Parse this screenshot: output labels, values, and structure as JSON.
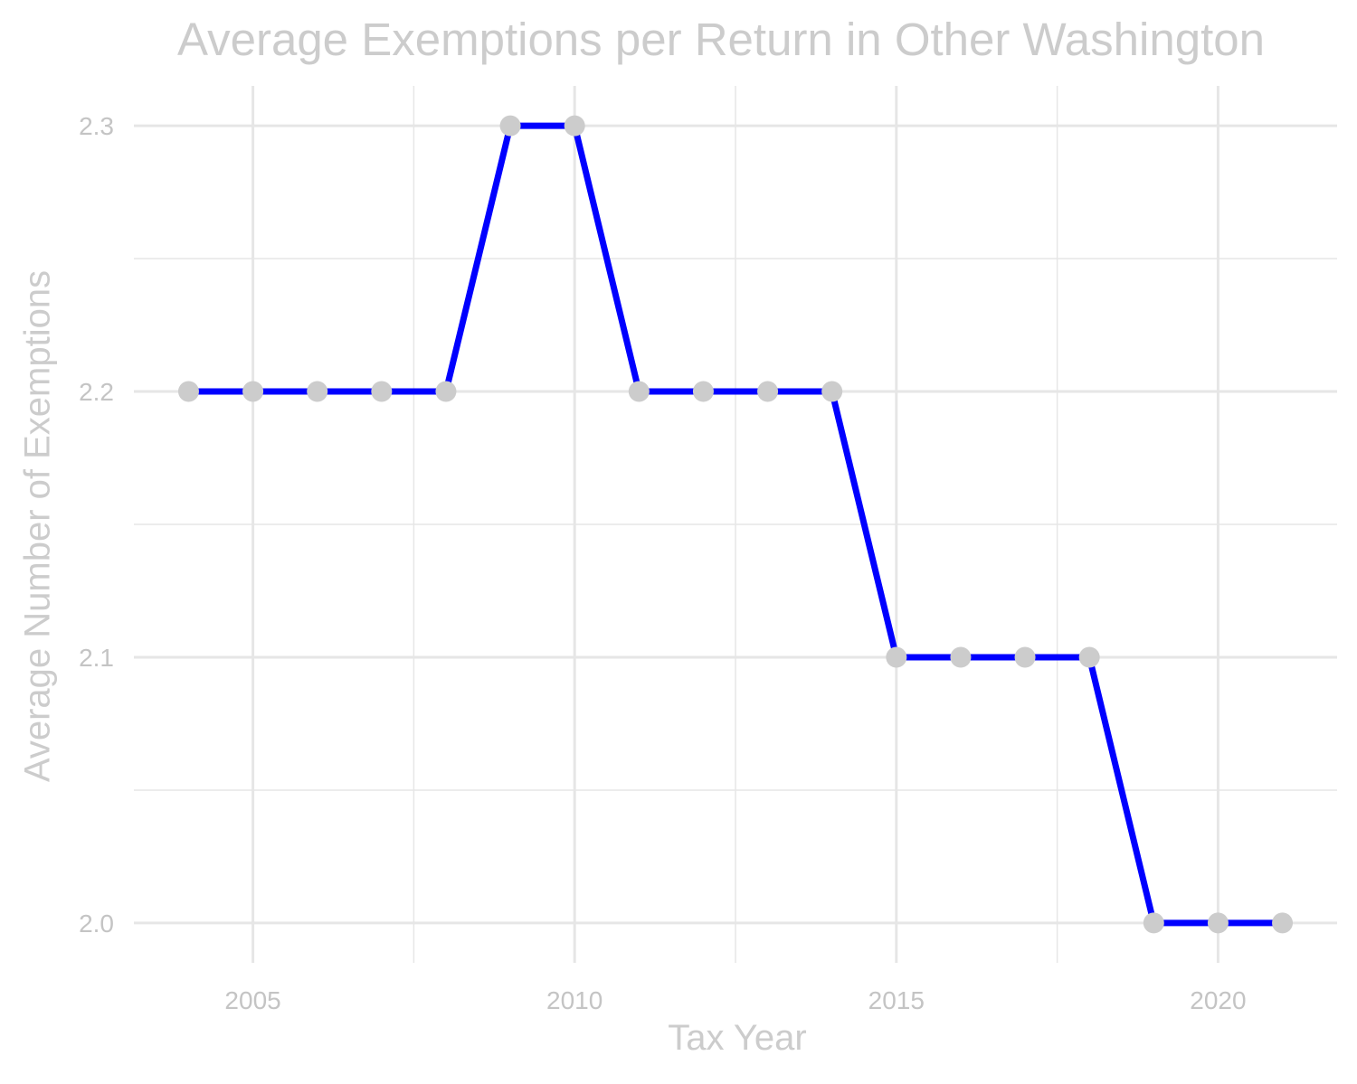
{
  "chart_data": {
    "type": "line",
    "title": "Average Exemptions per Return in Other Washington",
    "xlabel": "Tax Year",
    "ylabel": "Average Number of Exemptions",
    "x": [
      2004,
      2005,
      2006,
      2007,
      2008,
      2009,
      2010,
      2011,
      2012,
      2013,
      2014,
      2015,
      2016,
      2017,
      2018,
      2019,
      2020,
      2021
    ],
    "series": [
      {
        "values": [
          2.2,
          2.2,
          2.2,
          2.2,
          2.2,
          2.3,
          2.3,
          2.2,
          2.2,
          2.2,
          2.2,
          2.1,
          2.1,
          2.1,
          2.1,
          2.0,
          2.0,
          2.0
        ],
        "line_color": "#0000ff",
        "point_color": "#cccccc"
      }
    ],
    "xticks": [
      2005,
      2010,
      2015,
      2020
    ],
    "xtick_labels": [
      "2005",
      "2010",
      "2015",
      "2020"
    ],
    "yticks": [
      2.0,
      2.1,
      2.2,
      2.3
    ],
    "ytick_labels": [
      "2.0",
      "2.1",
      "2.2",
      "2.3"
    ],
    "xlim": [
      2003.15,
      2021.85
    ],
    "ylim": [
      1.985,
      2.315
    ],
    "grid": true,
    "legend": "none",
    "colors": {
      "text": "#cccccc",
      "grid": "#e6e6e6",
      "line": "#0000ff",
      "points": "#cccccc"
    }
  }
}
